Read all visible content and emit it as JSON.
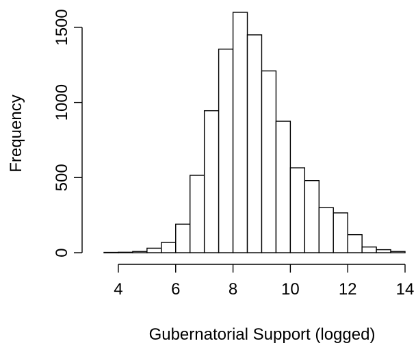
{
  "chart_data": {
    "type": "bar",
    "subtype": "histogram",
    "xlabel": "Gubernatorial Support (logged)",
    "ylabel": "Frequency",
    "xlim": [
      3.5,
      14
    ],
    "ylim": [
      0,
      1600
    ],
    "xticks": [
      4,
      6,
      8,
      10,
      12,
      14
    ],
    "yticks": [
      0,
      500,
      1000,
      1500
    ],
    "bin_width": 0.5,
    "bins": [
      {
        "x0": 3.5,
        "x1": 4.0,
        "count": 2
      },
      {
        "x0": 4.0,
        "x1": 4.5,
        "count": 3
      },
      {
        "x0": 4.5,
        "x1": 5.0,
        "count": 8
      },
      {
        "x0": 5.0,
        "x1": 5.5,
        "count": 30
      },
      {
        "x0": 5.5,
        "x1": 6.0,
        "count": 68
      },
      {
        "x0": 6.0,
        "x1": 6.5,
        "count": 190
      },
      {
        "x0": 6.5,
        "x1": 7.0,
        "count": 515
      },
      {
        "x0": 7.0,
        "x1": 7.5,
        "count": 945
      },
      {
        "x0": 7.5,
        "x1": 8.0,
        "count": 1355
      },
      {
        "x0": 8.0,
        "x1": 8.5,
        "count": 1600
      },
      {
        "x0": 8.5,
        "x1": 9.0,
        "count": 1450
      },
      {
        "x0": 9.0,
        "x1": 9.5,
        "count": 1210
      },
      {
        "x0": 9.5,
        "x1": 10.0,
        "count": 875
      },
      {
        "x0": 10.0,
        "x1": 10.5,
        "count": 565
      },
      {
        "x0": 10.5,
        "x1": 11.0,
        "count": 480
      },
      {
        "x0": 11.0,
        "x1": 11.5,
        "count": 300
      },
      {
        "x0": 11.5,
        "x1": 12.0,
        "count": 265
      },
      {
        "x0": 12.0,
        "x1": 12.5,
        "count": 120
      },
      {
        "x0": 12.5,
        "x1": 13.0,
        "count": 38
      },
      {
        "x0": 13.0,
        "x1": 13.5,
        "count": 20
      },
      {
        "x0": 13.5,
        "x1": 14.0,
        "count": 8
      }
    ]
  }
}
